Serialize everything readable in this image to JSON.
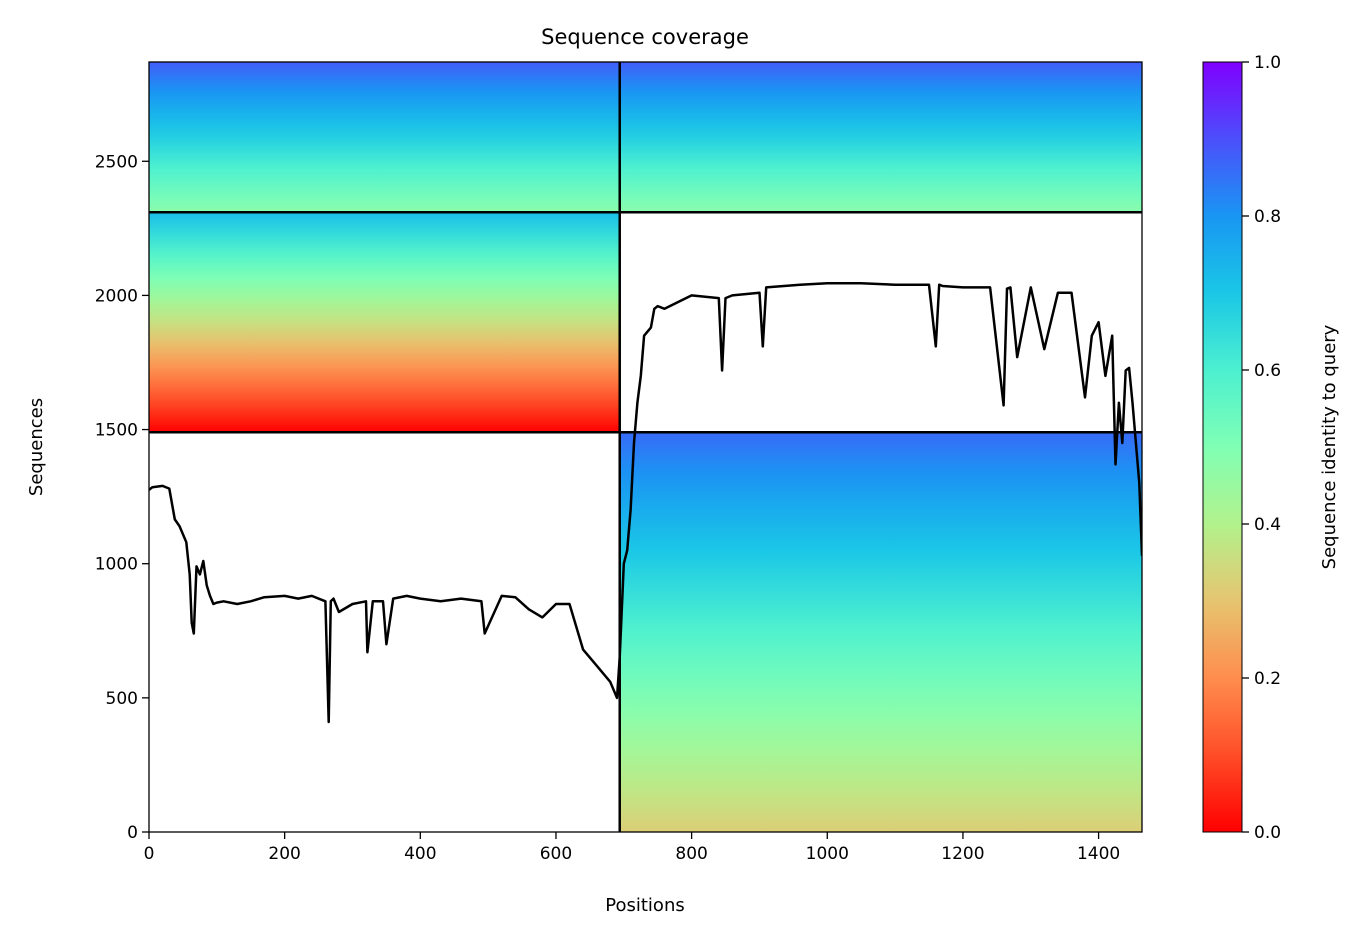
{
  "chart_data": {
    "type": "heatmap",
    "title": "Sequence coverage",
    "xlabel": "Positions",
    "ylabel": "Sequences",
    "xlim": [
      0,
      1464
    ],
    "ylim": [
      0,
      2870
    ],
    "x_ticks": [
      0,
      200,
      400,
      600,
      800,
      1000,
      1200,
      1400
    ],
    "y_ticks": [
      0,
      500,
      1000,
      1500,
      2000,
      2500
    ],
    "chain_boundary_position": 694,
    "group_boundaries": [
      1490,
      2310
    ],
    "colorbar": {
      "label": "Sequence identity to query",
      "range": [
        0.0,
        1.0
      ],
      "ticks": [
        "0.0",
        "0.2",
        "0.4",
        "0.6",
        "0.8",
        "1.0"
      ],
      "colormap": "rainbow_r"
    },
    "blocks": [
      {
        "name": "paired",
        "x_range": [
          0,
          1464
        ],
        "y_range": [
          2310,
          2870
        ],
        "identity_top": 0.88,
        "identity_bottom": 0.48
      },
      {
        "name": "chain-a-unpaired",
        "x_range": [
          0,
          694
        ],
        "y_range": [
          1490,
          2310
        ],
        "identity_top": 0.72,
        "identity_bottom": 0.0
      },
      {
        "name": "chain-b-unpaired",
        "x_range": [
          694,
          1464
        ],
        "y_range": [
          0,
          1490
        ],
        "identity_top": 0.86,
        "identity_bottom": 0.32
      }
    ],
    "coverage_line": {
      "name": "coverage",
      "color": "#000000",
      "x": [
        0,
        5,
        20,
        30,
        38,
        45,
        55,
        60,
        63,
        66,
        70,
        75,
        80,
        85,
        90,
        95,
        100,
        110,
        130,
        150,
        170,
        200,
        220,
        240,
        260,
        265,
        268,
        272,
        280,
        300,
        320,
        322,
        330,
        345,
        350,
        360,
        380,
        400,
        430,
        460,
        490,
        495,
        520,
        540,
        560,
        580,
        600,
        620,
        640,
        660,
        680,
        690,
        694,
        700,
        705,
        710,
        715,
        720,
        725,
        730,
        740,
        745,
        750,
        760,
        800,
        840,
        845,
        850,
        860,
        900,
        905,
        910,
        960,
        1000,
        1050,
        1100,
        1150,
        1160,
        1165,
        1170,
        1200,
        1240,
        1260,
        1265,
        1270,
        1280,
        1300,
        1320,
        1340,
        1360,
        1380,
        1390,
        1400,
        1410,
        1420,
        1425,
        1430,
        1435,
        1440,
        1445,
        1450,
        1455,
        1460,
        1464
      ],
      "y": [
        1275,
        1285,
        1290,
        1280,
        1165,
        1140,
        1080,
        960,
        780,
        740,
        990,
        960,
        1010,
        920,
        880,
        850,
        855,
        860,
        850,
        860,
        875,
        880,
        870,
        880,
        860,
        410,
        860,
        870,
        820,
        850,
        860,
        670,
        860,
        860,
        700,
        870,
        880,
        870,
        860,
        870,
        860,
        740,
        880,
        875,
        830,
        800,
        850,
        850,
        680,
        620,
        560,
        500,
        650,
        1000,
        1050,
        1200,
        1450,
        1600,
        1700,
        1850,
        1880,
        1950,
        1960,
        1950,
        2000,
        1990,
        1720,
        1990,
        2000,
        2010,
        1810,
        2030,
        2040,
        2045,
        2045,
        2040,
        2040,
        1810,
        2040,
        2035,
        2030,
        2030,
        1590,
        2025,
        2030,
        1770,
        2030,
        1800,
        2010,
        2010,
        1620,
        1850,
        1900,
        1700,
        1850,
        1370,
        1600,
        1450,
        1720,
        1730,
        1600,
        1450,
        1300,
        1030
      ]
    }
  }
}
